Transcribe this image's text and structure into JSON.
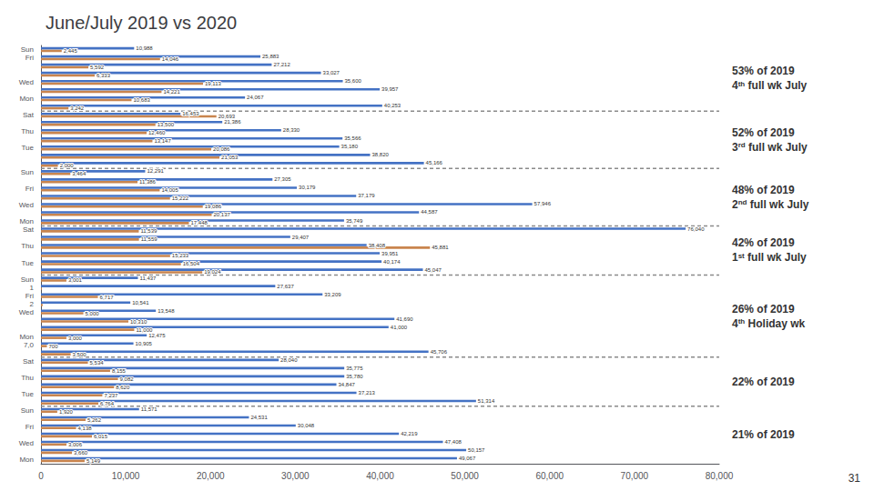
{
  "chart_data": {
    "type": "bar",
    "title": "June/July 2019 vs 2020",
    "orientation": "horizontal",
    "categories": [
      "Sun",
      "Fri",
      null,
      null,
      "Wed",
      null,
      "Mon",
      null,
      "Sat",
      null,
      "Thu",
      null,
      "Tue",
      null,
      null,
      "Sun",
      null,
      "Fri",
      null,
      "Wed",
      null,
      "Mon",
      "Sat",
      null,
      "Thu",
      null,
      "Tue",
      null,
      "Sun",
      "1",
      "Fri",
      "2",
      "Wed",
      null,
      null,
      "Mon",
      "7,0",
      null,
      "Sat",
      null,
      "Thu",
      null,
      "Tue",
      null,
      "Sun",
      null,
      "Fri",
      null,
      "Wed",
      null,
      "Mon"
    ],
    "series": [
      {
        "color": "#4472c4",
        "values": [
          10988,
          25883,
          27212,
          33027,
          35600,
          39957,
          24067,
          40253,
          16453,
          21386,
          28330,
          35566,
          35180,
          38820,
          45166,
          12291,
          27305,
          30179,
          37179,
          57946,
          44587,
          35749,
          76040,
          29407,
          38408,
          39951,
          40174,
          45047,
          11437,
          27637,
          33209,
          10541,
          13548,
          41690,
          41000,
          12475,
          10905,
          45706,
          28040,
          35775,
          35780,
          34847,
          37213,
          51314,
          11571,
          24531,
          30048,
          42219,
          47408,
          50157,
          49067
        ],
        "value_labels": [
          "10,988",
          "25,883",
          "27,212",
          "33,027",
          "35,600",
          "39,957",
          "24,067",
          "40,253",
          "16,453",
          "21,386",
          "28,330",
          "35,566",
          "35,180",
          "38,820",
          "45,166",
          "12,291",
          "27,305",
          "30,179",
          "37,179",
          "57,946",
          "44,587",
          "35,749",
          "76,040",
          "29,407",
          "38,408",
          "39,951",
          "40,174",
          "45,047",
          "11,437",
          "27,637",
          "33,209",
          "10,541",
          "13,548",
          "41,690",
          "41,000",
          "12,475",
          "10,905",
          "45,706",
          "28,040",
          "35,775",
          "35,780",
          "34,847",
          "37,213",
          "51,314",
          "11,571",
          "24,531",
          "30,048",
          "42,219",
          "47,408",
          "50,157",
          "49,067"
        ]
      },
      {
        "color": "#c9854e",
        "values": [
          2445,
          14046,
          5592,
          6333,
          19113,
          14221,
          10683,
          3242,
          20693,
          13500,
          12460,
          13147,
          20086,
          21053,
          2000,
          3464,
          11386,
          14005,
          15222,
          19086,
          20137,
          17448,
          11539,
          11559,
          45881,
          15233,
          16504,
          19024,
          3001,
          100,
          6717,
          200,
          5000,
          10310,
          11000,
          3000,
          700,
          3500,
          5534,
          8155,
          9082,
          8620,
          7237,
          6764,
          1920,
          5262,
          4138,
          6015,
          3006,
          3660,
          5149
        ],
        "value_labels": [
          "2,445",
          "14,046",
          "5,592",
          "6,333",
          "19,113",
          "14,221",
          "10,683",
          "3,242",
          "20,693",
          "13,500",
          "12,460",
          "13,147",
          "20,086",
          "21,053",
          "2,000",
          "3,464",
          "11,386",
          "14,005",
          "15,222",
          "19,086",
          "20,137",
          "17,448",
          "11,539",
          "11,559",
          "45,881",
          "15,233",
          "16,504",
          "19,024",
          "3,001",
          null,
          "6,717",
          null,
          "5,000",
          "10,310",
          "11,000",
          "3,000",
          "700",
          "3,500",
          "5,534",
          "8,155",
          "9,082",
          "8,620",
          "7,237",
          "6,764",
          "1,920",
          "5,262",
          "4,138",
          "6,015",
          "3,006",
          "3,660",
          "5,149"
        ]
      }
    ],
    "xlim": [
      0,
      80000
    ],
    "xticks": [
      0,
      {
        "value": 10000,
        "label": "10,000"
      },
      {
        "value": 20000,
        "label": "20,000"
      },
      {
        "value": 30000,
        "label": "30,000"
      },
      {
        "value": 40000,
        "label": "40,000"
      },
      {
        "value": 50000,
        "label": "50,000"
      },
      {
        "value": 60000,
        "label": "60,000"
      },
      {
        "value": 70000,
        "label": "70,000"
      },
      {
        "value": 80000,
        "label": "80,000"
      }
    ],
    "grid": false,
    "data_labels": true,
    "annotations": [
      {
        "text": "53% of 2019",
        "week": [
          "4",
          "th",
          " full wk July"
        ],
        "days": 8
      },
      {
        "text": "52% of 2019",
        "week": [
          "3",
          "rd",
          " full wk July"
        ],
        "days": 7
      },
      {
        "text": "48% of 2019",
        "week": [
          "2",
          "nd",
          " full wk July"
        ],
        "days": 7
      },
      {
        "text": "42% of 2019",
        "week": [
          "1",
          "st",
          " full wk July"
        ],
        "days": 6
      },
      {
        "text": "26% of 2019",
        "week": [
          "4",
          "th",
          " Holiday wk"
        ],
        "days": 10
      },
      {
        "text": "22% of 2019",
        "days": 6
      },
      {
        "text": "21% of 2019",
        "days": 7
      }
    ],
    "footer": "31"
  }
}
